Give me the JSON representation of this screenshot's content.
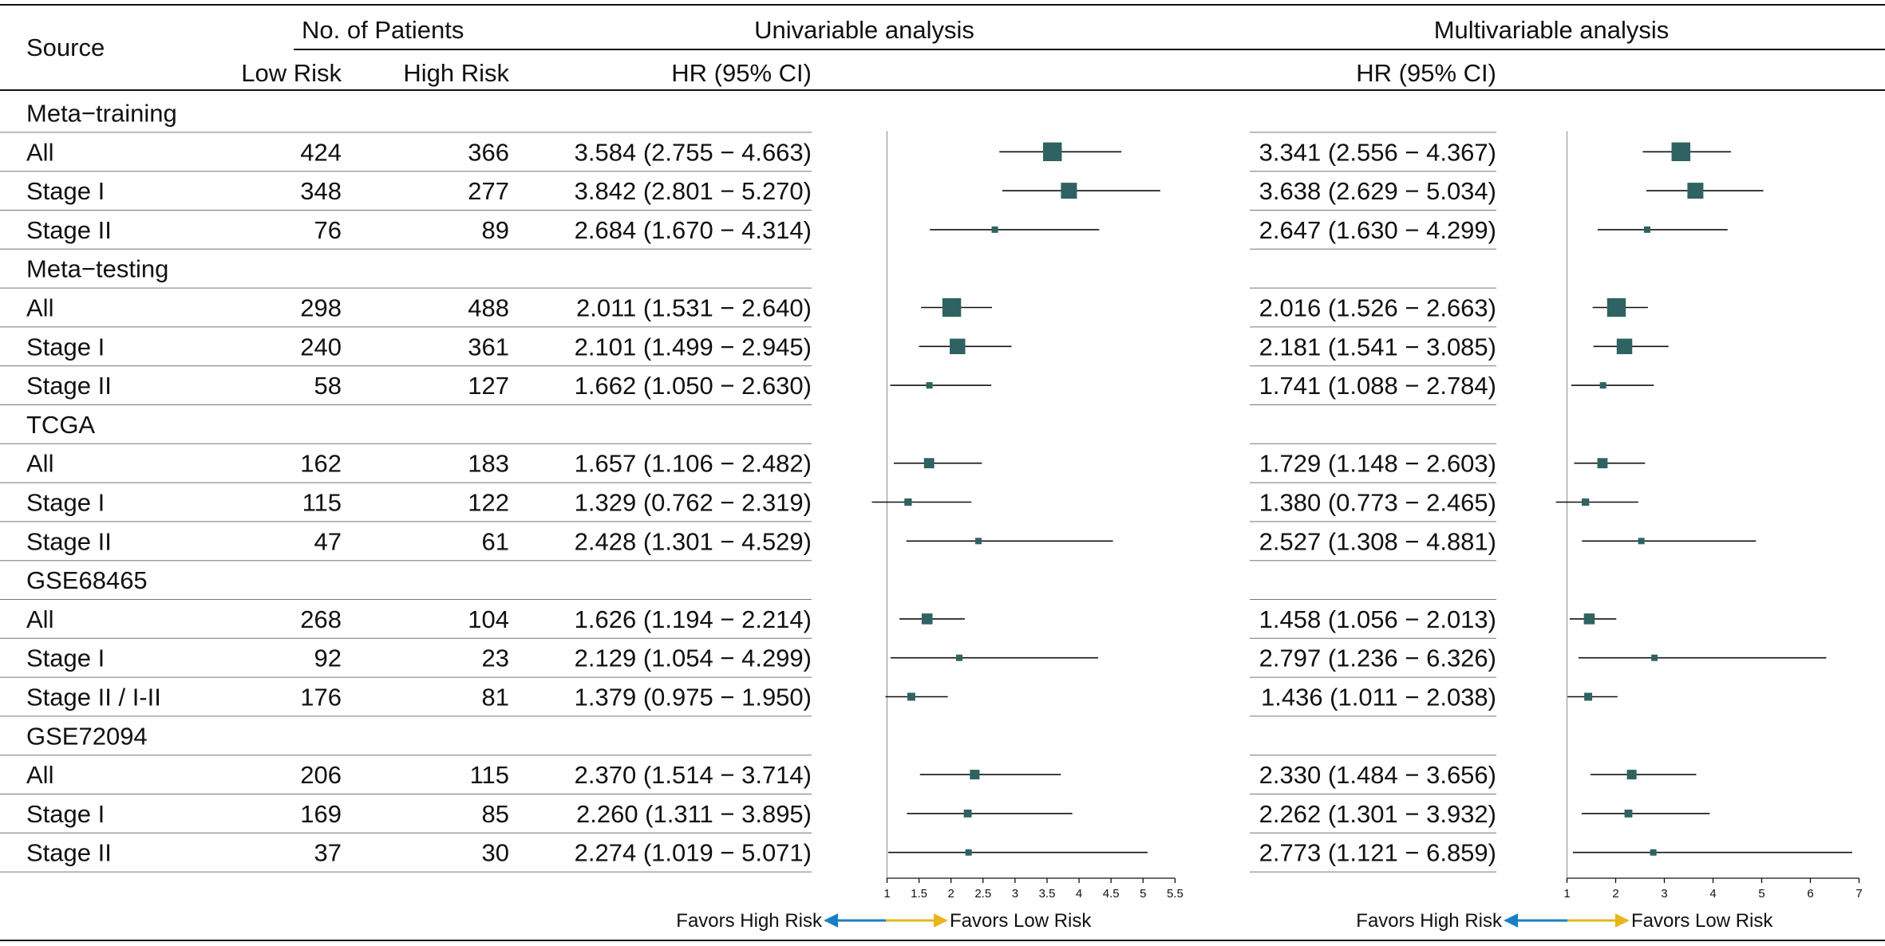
{
  "chart_data": {
    "type": "forest",
    "headers": {
      "source": "Source",
      "patients": "No. of Patients",
      "low_risk": "Low Risk",
      "high_risk": "High Risk",
      "univariable": "Univariable analysis",
      "multivariable": "Multivariable analysis",
      "hr_uni": "HR (95% CI)",
      "hr_multi": "HR (95% CI)"
    },
    "groups": [
      {
        "name": "Meta−training",
        "rows": [
          {
            "label": "All",
            "low": "424",
            "high": "366",
            "uni": {
              "text": "3.584 (2.755 − 4.663)",
              "hr": 3.584,
              "lo": 2.755,
              "hi": 4.663
            },
            "multi": {
              "text": "3.341 (2.556 − 4.367)",
              "hr": 3.341,
              "lo": 2.556,
              "hi": 4.367
            }
          },
          {
            "label": "Stage I",
            "low": "348",
            "high": "277",
            "uni": {
              "text": "3.842 (2.801 − 5.270)",
              "hr": 3.842,
              "lo": 2.801,
              "hi": 5.27
            },
            "multi": {
              "text": "3.638 (2.629 − 5.034)",
              "hr": 3.638,
              "lo": 2.629,
              "hi": 5.034
            }
          },
          {
            "label": "Stage II",
            "low": "76",
            "high": "89",
            "uni": {
              "text": "2.684 (1.670 − 4.314)",
              "hr": 2.684,
              "lo": 1.67,
              "hi": 4.314
            },
            "multi": {
              "text": "2.647 (1.630 − 4.299)",
              "hr": 2.647,
              "lo": 1.63,
              "hi": 4.299
            }
          }
        ]
      },
      {
        "name": "Meta−testing",
        "rows": [
          {
            "label": "All",
            "low": "298",
            "high": "488",
            "uni": {
              "text": "2.011 (1.531 − 2.640)",
              "hr": 2.011,
              "lo": 1.531,
              "hi": 2.64
            },
            "multi": {
              "text": "2.016 (1.526 − 2.663)",
              "hr": 2.016,
              "lo": 1.526,
              "hi": 2.663
            }
          },
          {
            "label": "Stage I",
            "low": "240",
            "high": "361",
            "uni": {
              "text": "2.101 (1.499 − 2.945)",
              "hr": 2.101,
              "lo": 1.499,
              "hi": 2.945
            },
            "multi": {
              "text": "2.181 (1.541 − 3.085)",
              "hr": 2.181,
              "lo": 1.541,
              "hi": 3.085
            }
          },
          {
            "label": "Stage II",
            "low": "58",
            "high": "127",
            "uni": {
              "text": "1.662 (1.050 − 2.630)",
              "hr": 1.662,
              "lo": 1.05,
              "hi": 2.63
            },
            "multi": {
              "text": "1.741 (1.088 − 2.784)",
              "hr": 1.741,
              "lo": 1.088,
              "hi": 2.784
            }
          }
        ]
      },
      {
        "name": "TCGA",
        "rows": [
          {
            "label": "All",
            "low": "162",
            "high": "183",
            "uni": {
              "text": "1.657 (1.106 − 2.482)",
              "hr": 1.657,
              "lo": 1.106,
              "hi": 2.482
            },
            "multi": {
              "text": "1.729 (1.148 − 2.603)",
              "hr": 1.729,
              "lo": 1.148,
              "hi": 2.603
            }
          },
          {
            "label": "Stage I",
            "low": "115",
            "high": "122",
            "uni": {
              "text": "1.329 (0.762 − 2.319)",
              "hr": 1.329,
              "lo": 0.762,
              "hi": 2.319
            },
            "multi": {
              "text": "1.380 (0.773 − 2.465)",
              "hr": 1.38,
              "lo": 0.773,
              "hi": 2.465
            }
          },
          {
            "label": "Stage II",
            "low": "47",
            "high": "61",
            "uni": {
              "text": "2.428 (1.301 − 4.529)",
              "hr": 2.428,
              "lo": 1.301,
              "hi": 4.529
            },
            "multi": {
              "text": "2.527 (1.308 − 4.881)",
              "hr": 2.527,
              "lo": 1.308,
              "hi": 4.881
            }
          }
        ]
      },
      {
        "name": "GSE68465",
        "rows": [
          {
            "label": "All",
            "low": "268",
            "high": "104",
            "uni": {
              "text": "1.626 (1.194 − 2.214)",
              "hr": 1.626,
              "lo": 1.194,
              "hi": 2.214
            },
            "multi": {
              "text": "1.458 (1.056 − 2.013)",
              "hr": 1.458,
              "lo": 1.056,
              "hi": 2.013
            }
          },
          {
            "label": "Stage I",
            "low": "92",
            "high": "23",
            "uni": {
              "text": "2.129 (1.054 − 4.299)",
              "hr": 2.129,
              "lo": 1.054,
              "hi": 4.299
            },
            "multi": {
              "text": "2.797 (1.236 − 6.326)",
              "hr": 2.797,
              "lo": 1.236,
              "hi": 6.326
            }
          },
          {
            "label": "Stage II / I-II",
            "low": "176",
            "high": "81",
            "uni": {
              "text": "1.379 (0.975 − 1.950)",
              "hr": 1.379,
              "lo": 0.975,
              "hi": 1.95
            },
            "multi": {
              "text": "1.436 (1.011 − 2.038)",
              "hr": 1.436,
              "lo": 1.011,
              "hi": 2.038
            }
          }
        ]
      },
      {
        "name": "GSE72094",
        "rows": [
          {
            "label": "All",
            "low": "206",
            "high": "115",
            "uni": {
              "text": "2.370 (1.514 − 3.714)",
              "hr": 2.37,
              "lo": 1.514,
              "hi": 3.714
            },
            "multi": {
              "text": "2.330 (1.484 − 3.656)",
              "hr": 2.33,
              "lo": 1.484,
              "hi": 3.656
            }
          },
          {
            "label": "Stage I",
            "low": "169",
            "high": "85",
            "uni": {
              "text": "2.260 (1.311 − 3.895)",
              "hr": 2.26,
              "lo": 1.311,
              "hi": 3.895
            },
            "multi": {
              "text": "2.262 (1.301 − 3.932)",
              "hr": 2.262,
              "lo": 1.301,
              "hi": 3.932
            }
          },
          {
            "label": "Stage II",
            "low": "37",
            "high": "30",
            "uni": {
              "text": "2.274 (1.019 − 5.071)",
              "hr": 2.274,
              "lo": 1.019,
              "hi": 5.071
            },
            "multi": {
              "text": "2.773 (1.121 − 6.859)",
              "hr": 2.773,
              "lo": 1.121,
              "hi": 6.859
            }
          }
        ]
      }
    ],
    "uni_axis": {
      "ticks": [
        "1",
        "1.5",
        "2",
        "2.5",
        "3",
        "3.5",
        "4",
        "4.5",
        "5",
        "5.5"
      ],
      "reference": 1
    },
    "multi_axis": {
      "ticks": [
        "1",
        "2",
        "3",
        "4",
        "5",
        "6",
        "7"
      ],
      "reference": 1
    },
    "favors": {
      "left": "Favors High Risk",
      "right": "Favors Low Risk"
    },
    "colors": {
      "marker": "#2f6262",
      "arrow_left": "#1a7fc4",
      "arrow_right": "#e8b61c",
      "text": "#111111"
    }
  }
}
